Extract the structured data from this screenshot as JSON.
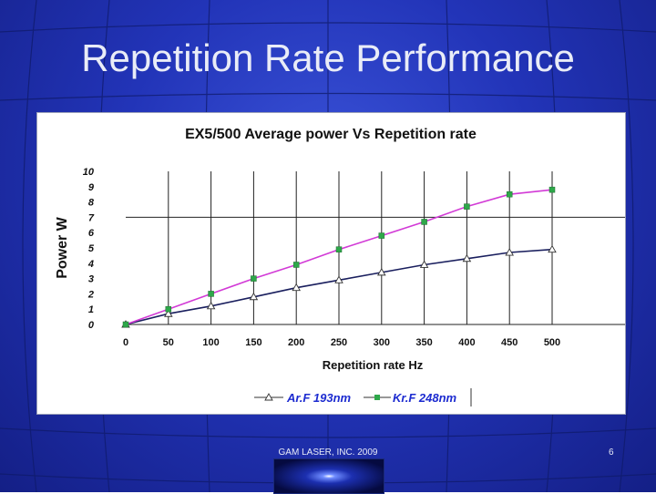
{
  "slide": {
    "title": "Repetition Rate Performance",
    "footer": "GAM LASER, INC. 2009",
    "page_number": "6"
  },
  "colors": {
    "background": "#2234b8",
    "arf_series": "#1a1f5e",
    "krf_series": "#d23ad6",
    "krf_marker": "#2ea84a"
  },
  "chart_data": {
    "type": "line",
    "title": "EX5/500 Average power Vs Repetition rate",
    "xlabel": "Repetition rate Hz",
    "ylabel": "Power W",
    "x": [
      0,
      50,
      100,
      150,
      200,
      250,
      300,
      350,
      400,
      450,
      500
    ],
    "xlim": [
      0,
      500
    ],
    "ylim": [
      0,
      10
    ],
    "x_ticks": [
      0,
      50,
      100,
      150,
      200,
      250,
      300,
      350,
      400,
      450,
      500
    ],
    "y_ticks": [
      0,
      1,
      2,
      3,
      4,
      5,
      6,
      7,
      8,
      9,
      10
    ],
    "grid": "vertical lines, horizontal line at 7",
    "legend_position": "bottom",
    "series": [
      {
        "name": "Ar.F 193nm",
        "marker": "triangle",
        "values": [
          0,
          0.7,
          1.2,
          1.8,
          2.4,
          2.9,
          3.4,
          3.9,
          4.3,
          4.7,
          4.9
        ]
      },
      {
        "name": "Kr.F 248nm",
        "marker": "square",
        "values": [
          0,
          1,
          2,
          3,
          3.9,
          4.9,
          5.8,
          6.7,
          7.7,
          8.5,
          8.8
        ]
      }
    ]
  }
}
